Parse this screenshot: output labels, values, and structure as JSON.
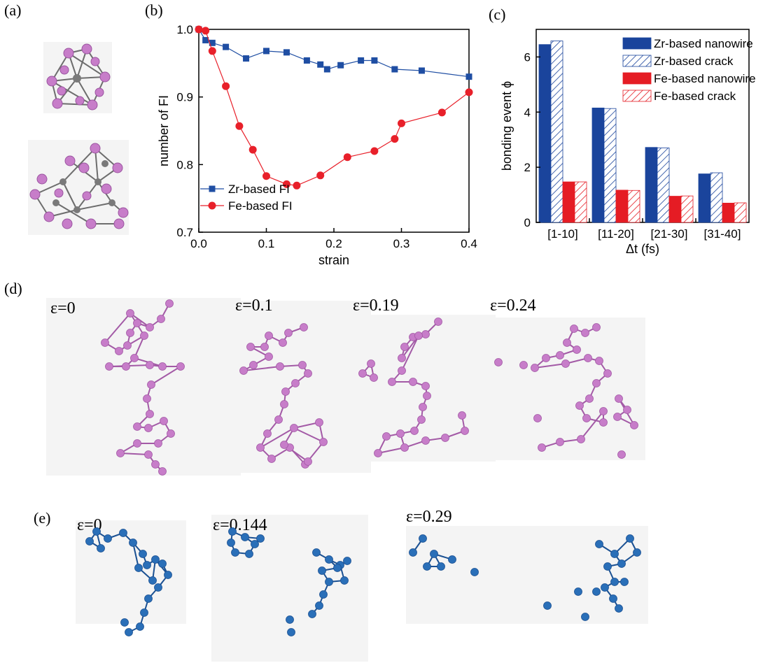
{
  "panels": {
    "a": {
      "label": "(a)"
    },
    "b": {
      "label": "(b)"
    },
    "c": {
      "label": "(c)"
    },
    "d": {
      "label": "(d)",
      "snapshots": [
        "ε=0",
        "ε=0.1",
        "ε=0.19",
        "ε=0.24"
      ]
    },
    "e": {
      "label": "(e)",
      "snapshots": [
        "ε=0",
        "ε=0.144",
        "ε=0.29"
      ]
    }
  },
  "colors": {
    "zr": "#1f4ea3",
    "fe": "#e8202a",
    "zr_bar": "#1a449c",
    "fe_bar": "#e51c24",
    "atom_pink": "#c77dc9",
    "atom_gray": "#7a7a7a",
    "atom_blue": "#2a6fb8"
  },
  "chart_data": [
    {
      "id": "b",
      "type": "line",
      "title": "",
      "xlabel": "strain",
      "ylabel": "number of FI",
      "xlim": [
        0.0,
        0.4
      ],
      "ylim": [
        0.7,
        1.0
      ],
      "xticks": [
        "0.0",
        "0.1",
        "0.2",
        "0.3",
        "0.4"
      ],
      "yticks": [
        "0.7",
        "0.8",
        "0.9",
        "1.0"
      ],
      "legend": [
        "Zr-based FI",
        "Fe-based FI"
      ],
      "series": [
        {
          "name": "Zr-based FI",
          "marker": "square",
          "x": [
            0.0,
            0.01,
            0.02,
            0.04,
            0.07,
            0.1,
            0.13,
            0.16,
            0.18,
            0.19,
            0.21,
            0.24,
            0.26,
            0.29,
            0.33,
            0.4
          ],
          "y": [
            1.0,
            0.984,
            0.98,
            0.974,
            0.957,
            0.968,
            0.966,
            0.954,
            0.948,
            0.941,
            0.947,
            0.954,
            0.954,
            0.941,
            0.939,
            0.93
          ]
        },
        {
          "name": "Fe-based FI",
          "marker": "circle",
          "x": [
            0.0,
            0.01,
            0.02,
            0.04,
            0.06,
            0.08,
            0.1,
            0.13,
            0.145,
            0.18,
            0.22,
            0.26,
            0.29,
            0.3,
            0.36,
            0.4
          ],
          "y": [
            1.0,
            0.998,
            0.968,
            0.916,
            0.857,
            0.822,
            0.783,
            0.771,
            0.769,
            0.784,
            0.811,
            0.82,
            0.838,
            0.861,
            0.877,
            0.907
          ]
        }
      ]
    },
    {
      "id": "c",
      "type": "bar",
      "title": "",
      "xlabel": "Δt (fs)",
      "ylabel": "bonding event ϕ",
      "ylim": [
        0,
        7
      ],
      "yticks": [
        "0",
        "2",
        "4",
        "6"
      ],
      "categories": [
        "[1-10]",
        "[11-20]",
        "[21-30]",
        "[31-40]"
      ],
      "series": [
        {
          "name": "Zr-based nanowire",
          "values": [
            6.45,
            4.15,
            2.72,
            1.76
          ]
        },
        {
          "name": "Zr-based crack",
          "values": [
            6.58,
            4.13,
            2.7,
            1.8
          ]
        },
        {
          "name": "Fe-based nanowire",
          "values": [
            1.47,
            1.17,
            0.95,
            0.7
          ]
        },
        {
          "name": "Fe-based crack",
          "values": [
            1.47,
            1.16,
            0.96,
            0.71
          ]
        }
      ]
    }
  ]
}
